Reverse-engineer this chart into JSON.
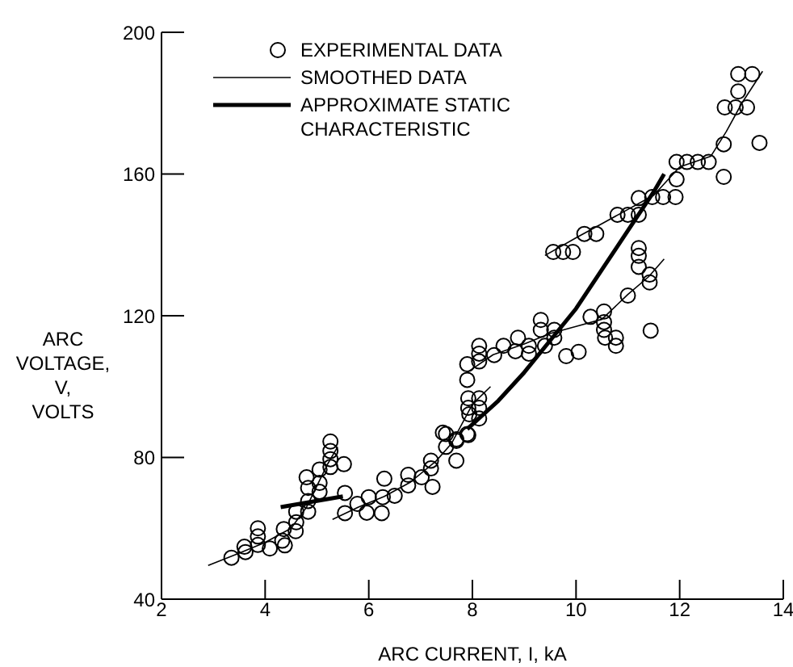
{
  "chart_data": {
    "type": "scatter",
    "xlabel": "ARC CURRENT, I, kA",
    "ylabel": "ARC VOLTAGE, V, VOLTS",
    "xlim": [
      2,
      14
    ],
    "xticks": [
      2,
      4,
      6,
      8,
      10,
      12,
      14
    ],
    "ylim": [
      40,
      200
    ],
    "yticks": [
      40,
      80,
      120,
      160,
      200
    ],
    "grid": false,
    "legend": "top left",
    "series": [
      {
        "name": "EXPERIMENTAL DATA",
        "marker": "circle",
        "color": "#000000",
        "x": [
          3.35,
          3.62,
          3.6,
          3.86,
          3.86,
          3.86,
          4.09,
          4.33,
          4.38,
          4.36,
          4.59,
          4.6,
          4.6,
          4.83,
          4.83,
          4.83,
          4.8,
          5.05,
          5.05,
          5.05,
          5.26,
          5.26,
          5.26,
          5.26,
          5.52,
          5.54,
          5.54,
          5.78,
          5.96,
          6.0,
          6.25,
          6.27,
          6.3,
          6.5,
          6.76,
          6.76,
          7.02,
          7.23,
          7.2,
          7.2,
          7.49,
          7.49,
          7.69,
          7.69,
          7.9,
          8.13,
          7.94,
          7.43,
          7.69,
          7.92,
          7.92,
          7.92,
          8.13,
          8.13,
          7.9,
          7.9,
          8.13,
          8.13,
          8.13,
          8.42,
          8.6,
          8.83,
          8.88,
          9.09,
          9.09,
          9.32,
          9.32,
          9.4,
          9.58,
          9.58,
          9.81,
          10.05,
          10.28,
          10.54,
          10.54,
          10.54,
          10.56,
          10.77,
          10.77,
          11.0,
          11.44,
          11.42,
          11.42,
          11.21,
          11.21,
          11.21,
          9.56,
          9.75,
          9.94,
          10.16,
          10.39,
          10.8,
          11.0,
          11.21,
          11.21,
          11.47,
          11.68,
          11.94,
          11.92,
          11.94,
          12.14,
          12.35,
          12.56,
          12.85,
          12.85,
          12.87,
          13.08,
          13.3,
          13.13,
          13.13,
          13.4,
          13.54
        ],
        "values": [
          51.7,
          53.3,
          54.8,
          55.3,
          57.7,
          60,
          54.3,
          56.5,
          55.2,
          59.8,
          59.2,
          61.7,
          64.7,
          64.7,
          67.7,
          71.4,
          74.4,
          72.8,
          70.3,
          76.6,
          77.3,
          79.5,
          81.8,
          84.5,
          78.1,
          70,
          64.3,
          66.9,
          64.4,
          68.8,
          64.3,
          68.8,
          74,
          69.2,
          72.1,
          75.1,
          74.4,
          71.7,
          79.1,
          76.9,
          86.6,
          83,
          84.7,
          79.1,
          86.6,
          91,
          92.2,
          87,
          85.1,
          86.3,
          96.7,
          94,
          96.7,
          94,
          101.9,
          106.3,
          111.5,
          109.3,
          107.1,
          108.9,
          111.5,
          110,
          113.8,
          111.5,
          109.3,
          118.8,
          116,
          111.5,
          116,
          113.8,
          108.6,
          109.8,
          119.7,
          121.2,
          118.2,
          116,
          113.8,
          111.5,
          113.8,
          125.7,
          115.8,
          129.4,
          131.6,
          133.8,
          136.9,
          139.1,
          138,
          138,
          138,
          143.1,
          143.1,
          148.5,
          148.5,
          148.5,
          153.2,
          153.5,
          153.5,
          158.5,
          153.5,
          163.4,
          163.4,
          163.4,
          163.4,
          159.2,
          168.4,
          178.8,
          178.8,
          178.8,
          183.3,
          188.2,
          188.2,
          168.8
        ]
      },
      {
        "name": "SMOOTHED DATA",
        "type": "line",
        "line_style": "solid",
        "color": "#000000",
        "x": [
          2.9,
          3.5,
          4,
          4.5,
          4.8,
          5.0,
          5.2,
          5.4
        ],
        "values": [
          49.5,
          53,
          56,
          60,
          66,
          72,
          78,
          83
        ]
      },
      {
        "name": "APPROXIMATE STATIC CHARACTERISTIC",
        "type": "line",
        "line_style": "solid",
        "color": "#000000",
        "x": [
          7.9,
          8.5,
          9,
          9.5,
          10,
          10.5,
          11,
          11.5,
          11.7
        ],
        "values": [
          88,
          96,
          104,
          113,
          122,
          133,
          144,
          155,
          160
        ]
      },
      {
        "type": "line",
        "line_style": "solid",
        "color": "#000000",
        "x": [
          5.3,
          5.8,
          6.3,
          6.8,
          7.3,
          7.6,
          8.0,
          8.35
        ],
        "values": [
          62.5,
          66,
          69,
          73,
          79,
          84,
          95,
          100
        ]
      },
      {
        "type": "line",
        "line_style": "solid",
        "color": "#000000",
        "x": [
          7.9,
          8.4,
          9,
          9.5,
          10,
          10.5,
          11,
          11.4,
          11.7
        ],
        "values": [
          104,
          109,
          112,
          115,
          117,
          119,
          126,
          131,
          136
        ]
      },
      {
        "type": "line",
        "line_style": "solid",
        "color": "#000000",
        "x": [
          9.4,
          10,
          10.5,
          11,
          11.5,
          12,
          12.6,
          12.9,
          13.2,
          13.6
        ],
        "values": [
          137,
          142,
          146,
          150,
          154,
          162,
          165,
          172,
          180,
          189
        ]
      },
      {
        "type": "line",
        "line_style": "solid",
        "color": "#000000",
        "x": [
          4.3,
          5.5
        ],
        "values": [
          66,
          69
        ]
      }
    ]
  }
}
